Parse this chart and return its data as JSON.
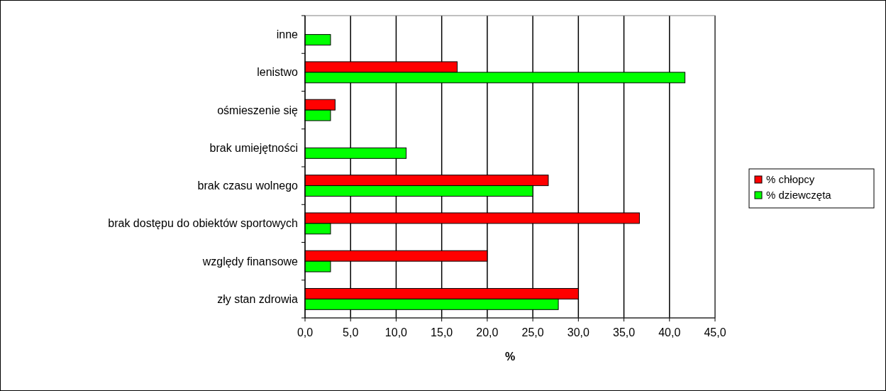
{
  "chart_data": {
    "type": "bar",
    "orientation": "horizontal",
    "xlabel": "%",
    "categories": [
      "inne",
      "lenistwo",
      "ośmieszenie się",
      "brak umiejętności",
      "brak czasu wolnego",
      "brak dostępu do obiektów sportowych",
      "względy finansowe",
      "zły stan zdrowia"
    ],
    "series": [
      {
        "name": "% chłopcy",
        "color": "#ff0000",
        "values": [
          null,
          16.7,
          3.3,
          null,
          26.7,
          36.7,
          20.0,
          30.0
        ]
      },
      {
        "name": "% dziewczęta",
        "color": "#00ff00",
        "values": [
          2.8,
          41.7,
          2.8,
          11.1,
          25.0,
          2.8,
          2.8,
          27.8
        ]
      }
    ],
    "xlim": [
      0,
      45
    ],
    "xticks": [
      {
        "value": 0,
        "label": "0,0"
      },
      {
        "value": 5,
        "label": "5,0"
      },
      {
        "value": 10,
        "label": "10,0"
      },
      {
        "value": 15,
        "label": "15,0"
      },
      {
        "value": 20,
        "label": "20,0"
      },
      {
        "value": 25,
        "label": "25,0"
      },
      {
        "value": 30,
        "label": "30,0"
      },
      {
        "value": 35,
        "label": "35,0"
      },
      {
        "value": 40,
        "label": "40,0"
      },
      {
        "value": 45,
        "label": "45,0"
      }
    ],
    "grid": "x",
    "legend": "right"
  }
}
